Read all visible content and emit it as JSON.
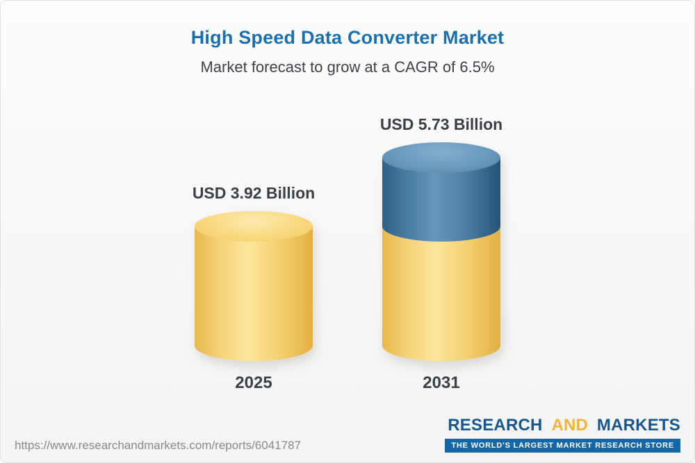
{
  "chart_data": {
    "type": "bar",
    "variant": "3d-cylinder",
    "title": "High Speed Data Converter Market",
    "subtitle": "Market forecast to grow at a CAGR of 6.5%",
    "cagr": "6.5%",
    "unit": "USD Billion",
    "categories": [
      "2025",
      "2031"
    ],
    "values": [
      3.92,
      5.73
    ],
    "value_labels": [
      "USD 3.92 Billion",
      "USD 5.73 Billion"
    ],
    "colors": {
      "base_segment": "#F6D176",
      "growth_segment": "#4A7DA3",
      "title_blue": "#1C6FAD"
    },
    "notes": "2031 cylinder is stacked: yellow base equals 2025 value, blue top is forecast growth",
    "legend": "none",
    "grid": "off"
  },
  "footer": {
    "url": "https://www.researchandmarkets.com/reports/6041787",
    "logo": {
      "word1": "RESEARCH",
      "word2": "AND",
      "word3": "MARKETS",
      "tagline": "THE WORLD'S LARGEST MARKET RESEARCH STORE",
      "brand_blue": "#17568F",
      "brand_yellow": "#F2B53A"
    }
  }
}
